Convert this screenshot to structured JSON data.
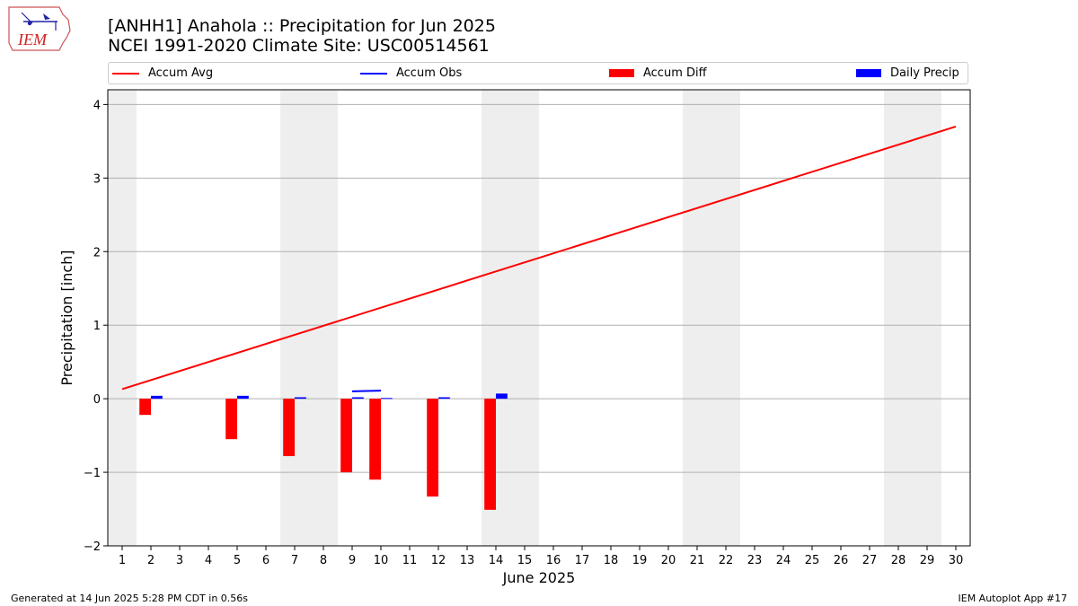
{
  "header": {
    "title_line1": "[ANHH1] Anahola :: Precipitation for Jun 2025",
    "title_line2": "NCEI 1991-2020 Climate Site: USC00514561",
    "logo_text": "IEM"
  },
  "footer": {
    "left": "Generated at 14 Jun 2025 5:28 PM CDT in 0.56s",
    "right": "IEM Autoplot App #17"
  },
  "colors": {
    "avg": "#ff0000",
    "obs": "#0000ff",
    "diff": "#ff0000",
    "daily": "#0000ff",
    "weekend": "#eeeeee",
    "grid": "#b0b0b0"
  },
  "legend": [
    {
      "label": "Accum Avg",
      "kind": "line",
      "color": "#ff0000"
    },
    {
      "label": "Accum Obs",
      "kind": "line",
      "color": "#0000ff"
    },
    {
      "label": "Accum Diff",
      "kind": "box",
      "color": "#ff0000"
    },
    {
      "label": "Daily Precip",
      "kind": "box",
      "color": "#0000ff"
    }
  ],
  "chart_data": {
    "type": "bar",
    "xlabel": "June 2025",
    "ylabel": "Precipitation [inch]",
    "xlim": [
      0.5,
      30.5
    ],
    "ylim": [
      -2,
      4.2
    ],
    "yticks": [
      -2,
      -1,
      0,
      1,
      2,
      3,
      4
    ],
    "ytick_labels": [
      "−2",
      "−1",
      "0",
      "1",
      "2",
      "3",
      "4"
    ],
    "xticks": [
      1,
      2,
      3,
      4,
      5,
      6,
      7,
      8,
      9,
      10,
      11,
      12,
      13,
      14,
      15,
      16,
      17,
      18,
      19,
      20,
      21,
      22,
      23,
      24,
      25,
      26,
      27,
      28,
      29,
      30
    ],
    "weekend_days": [
      1,
      7,
      8,
      14,
      15,
      21,
      22,
      28,
      29
    ],
    "grid": "horizontal",
    "series": [
      {
        "name": "Accum Avg",
        "type": "line",
        "x": [
          1,
          30
        ],
        "values": [
          0.13,
          3.7
        ]
      },
      {
        "name": "Accum Obs",
        "type": "line",
        "x": [
          9,
          10
        ],
        "values": [
          0.1,
          0.11
        ]
      },
      {
        "name": "Accum Diff",
        "type": "bar",
        "x": [
          2,
          5,
          7,
          9,
          10,
          12,
          14
        ],
        "values": [
          -0.22,
          -0.55,
          -0.78,
          -1.0,
          -1.1,
          -1.33,
          -1.51
        ]
      },
      {
        "name": "Daily Precip",
        "type": "bar",
        "x": [
          2,
          5,
          7,
          9,
          10,
          12,
          14
        ],
        "values": [
          0.04,
          0.04,
          0.02,
          0.02,
          0.01,
          0.02,
          0.07
        ]
      }
    ]
  }
}
